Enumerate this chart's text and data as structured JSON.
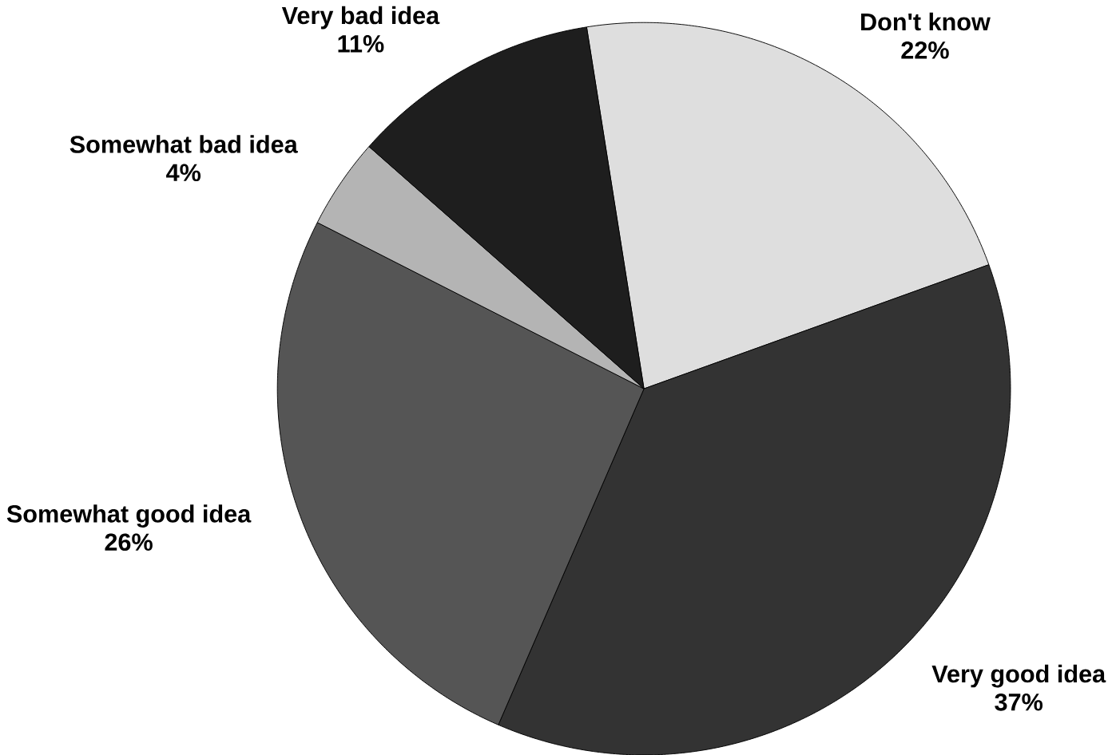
{
  "chart_data": {
    "type": "pie",
    "categories": [
      "Don't know",
      "Very good idea",
      "Somewhat good idea",
      "Somewhat bad idea",
      "Very bad idea"
    ],
    "values": [
      22,
      37,
      26,
      4,
      11
    ],
    "value_labels": [
      "22%",
      "37%",
      "26%",
      "4%",
      "11%"
    ],
    "colors": [
      "#dedede",
      "#333333",
      "#555555",
      "#b4b4b4",
      "#1e1e1e"
    ]
  }
}
